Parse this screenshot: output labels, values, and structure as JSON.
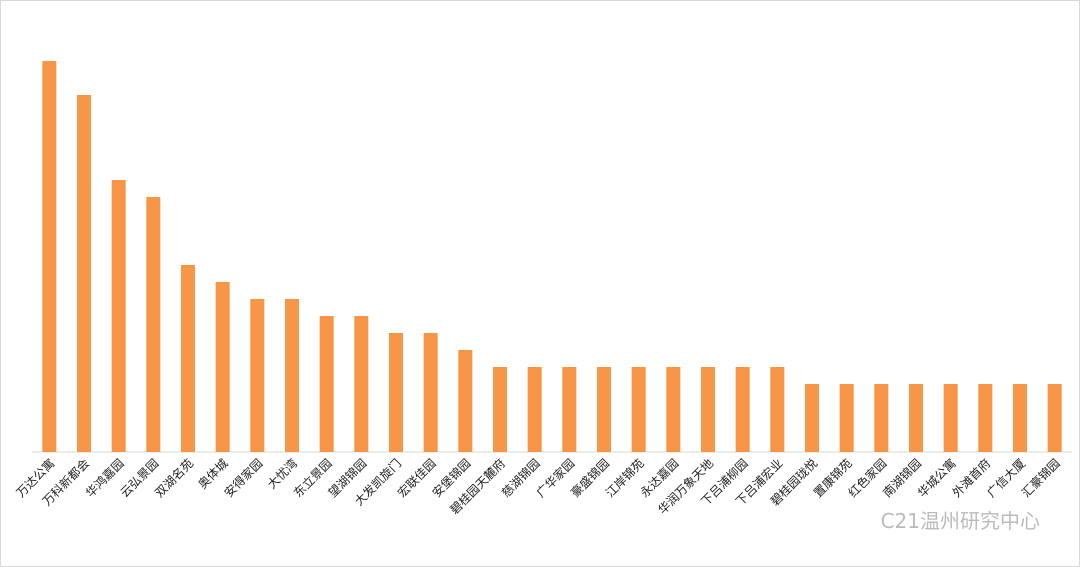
{
  "chart_data": {
    "type": "bar",
    "categories": [
      "万达公寓",
      "万科新都会",
      "华鸿嘉园",
      "云弘景园",
      "双湖名苑",
      "奥体城",
      "安得家园",
      "大忧湾",
      "东立景园",
      "望湖锦园",
      "大发凯旋门",
      "宏联佳园",
      "安堡锦园",
      "碧桂园天麓府",
      "慈湖锦园",
      "广华家园",
      "豪盛锦园",
      "江岸锦苑",
      "永达嘉园",
      "华润万象天地",
      "下吕浦柳园",
      "下吕浦宏业",
      "碧桂园珑悦",
      "置康锦苑",
      "红色家园",
      "南湖锦园",
      "华城公寓",
      "外滩首府",
      "广信大厦",
      "汇豪锦园"
    ],
    "values": [
      23,
      21,
      16,
      15,
      11,
      10,
      9,
      9,
      8,
      8,
      7,
      7,
      6,
      5,
      5,
      5,
      5,
      5,
      5,
      5,
      5,
      5,
      4,
      4,
      4,
      4,
      4,
      4,
      4,
      4
    ],
    "color": "#f79646",
    "ylim": [
      0,
      25
    ],
    "watermark": "C21温州研究中心"
  }
}
